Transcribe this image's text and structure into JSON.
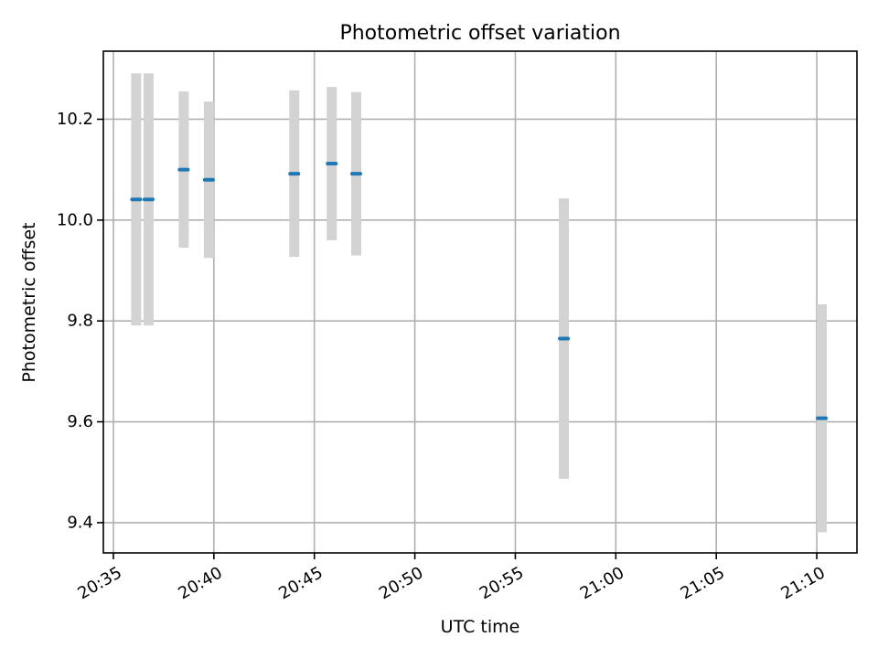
{
  "chart_data": {
    "type": "scatter",
    "title": "Photometric offset variation",
    "xlabel": "UTC time",
    "ylabel": "Photometric offset",
    "x_ticks": [
      "20:35",
      "20:40",
      "20:45",
      "20:50",
      "20:55",
      "21:00",
      "21:05",
      "21:10"
    ],
    "y_ticks": [
      "9.4",
      "9.6",
      "9.8",
      "10.0",
      "10.2"
    ],
    "xlim": [
      "20:34:30",
      "21:12:00"
    ],
    "ylim": [
      9.34,
      10.335
    ],
    "grid": true,
    "points": [
      {
        "x": "20:36:08",
        "y": 10.041,
        "err": 0.25
      },
      {
        "x": "20:36:45",
        "y": 10.041,
        "err": 0.25
      },
      {
        "x": "20:38:30",
        "y": 10.1,
        "err": 0.155
      },
      {
        "x": "20:39:45",
        "y": 10.08,
        "err": 0.155
      },
      {
        "x": "20:44:00",
        "y": 10.092,
        "err": 0.165
      },
      {
        "x": "20:45:52",
        "y": 10.112,
        "err": 0.152
      },
      {
        "x": "20:47:05",
        "y": 10.092,
        "err": 0.162
      },
      {
        "x": "20:57:25",
        "y": 9.765,
        "err": 0.278
      },
      {
        "x": "21:10:15",
        "y": 9.607,
        "err": 0.226
      }
    ],
    "colors": {
      "marker": "#1f77b4",
      "errorbar": "#d3d3d3",
      "grid": "#b0b0b0"
    }
  }
}
